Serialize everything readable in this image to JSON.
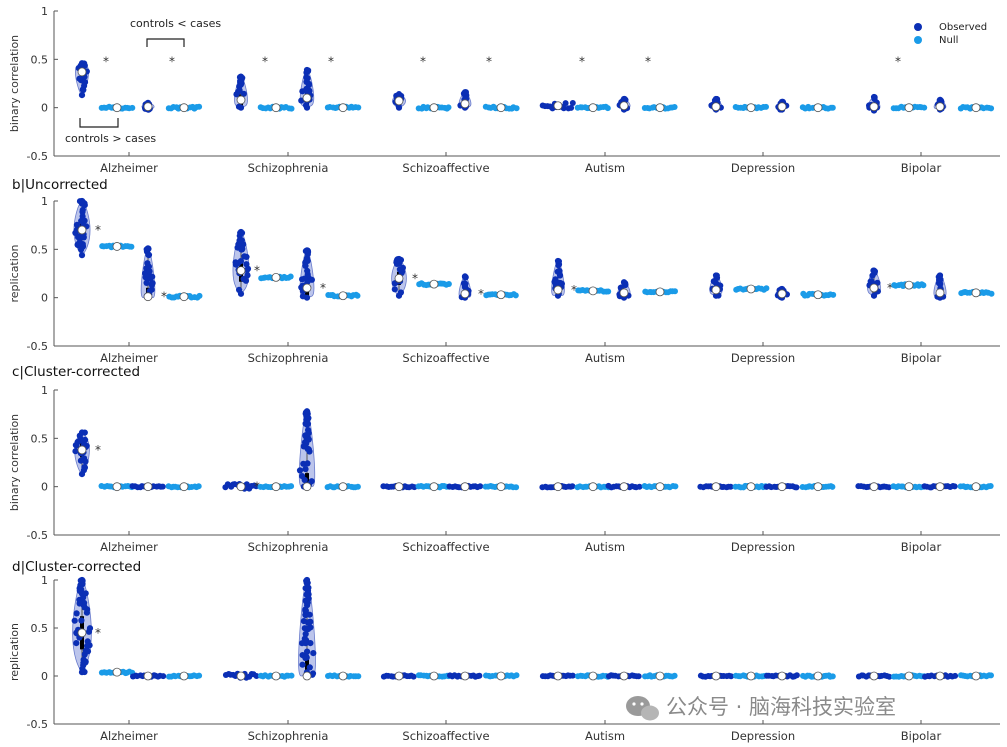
{
  "colors": {
    "observed": "#0b2fb5",
    "null": "#1a9be8",
    "violin": "#8f9fe0",
    "axis": "#555555"
  },
  "legend": {
    "observed": "Observed",
    "null": "Null",
    "placement": "top-right"
  },
  "annotations": {
    "upper": "controls < cases",
    "lower": "controls > cases"
  },
  "watermark": {
    "icon": "wechat-icon",
    "text": "公众号 · 脑海科技实验室"
  },
  "chart_data": [
    {
      "type": "violin-scatter",
      "title": "",
      "ylabel": "binary correlation",
      "ylim": [
        -0.5,
        1
      ],
      "yticks": [
        "1",
        "0.5",
        "0",
        "-0.5"
      ],
      "categories": [
        "Alzheimer",
        "Schizophrenia",
        "Schizoaffective",
        "Autism",
        "Depression",
        "Bipolar"
      ],
      "series": [
        {
          "name": "Observed",
          "group": "controls > cases",
          "median": [
            0.37,
            0.08,
            0.07,
            0.02,
            0.01,
            0.01
          ],
          "max": [
            0.46,
            0.32,
            0.14,
            0.06,
            0.09,
            0.11
          ],
          "min": [
            0.13,
            0.0,
            0.0,
            0.0,
            -0.02,
            -0.03
          ],
          "sig": [
            true,
            true,
            true,
            true,
            false,
            true
          ]
        },
        {
          "name": "Null",
          "group": "controls > cases",
          "median": [
            0,
            0,
            0,
            0,
            0,
            0
          ],
          "max": [
            0.01,
            0.01,
            0.01,
            0.01,
            0.01,
            0.01
          ],
          "min": [
            -0.01,
            -0.01,
            -0.01,
            -0.01,
            -0.01,
            -0.01
          ],
          "sig": [
            false,
            false,
            false,
            false,
            false,
            false
          ]
        },
        {
          "name": "Observed",
          "group": "controls < cases",
          "median": [
            0.01,
            0.1,
            0.04,
            0.02,
            0.01,
            0.01
          ],
          "max": [
            0.05,
            0.39,
            0.16,
            0.09,
            0.06,
            0.08
          ],
          "min": [
            -0.02,
            0.0,
            0.0,
            -0.02,
            -0.02,
            -0.02
          ],
          "sig": [
            true,
            true,
            true,
            true,
            false,
            false
          ]
        },
        {
          "name": "Null",
          "group": "controls < cases",
          "median": [
            0,
            0,
            0,
            0,
            0,
            0
          ],
          "max": [
            0.01,
            0.01,
            0.01,
            0.01,
            0.01,
            0.01
          ],
          "min": [
            -0.01,
            -0.01,
            -0.01,
            -0.01,
            -0.01,
            -0.01
          ],
          "sig": [
            false,
            false,
            false,
            false,
            false,
            false
          ]
        }
      ]
    },
    {
      "type": "violin-scatter",
      "title": "b|Uncorrected",
      "ylabel": "replication",
      "ylim": [
        -0.5,
        1
      ],
      "yticks": [
        "1",
        "0.5",
        "0",
        "-0.5"
      ],
      "categories": [
        "Alzheimer",
        "Schizophrenia",
        "Schizoaffective",
        "Autism",
        "Depression",
        "Bipolar"
      ],
      "series": [
        {
          "name": "Observed",
          "group": "controls > cases",
          "median": [
            0.7,
            0.28,
            0.2,
            0.08,
            0.08,
            0.1
          ],
          "max": [
            1.0,
            0.68,
            0.4,
            0.38,
            0.23,
            0.28
          ],
          "min": [
            0.44,
            0.04,
            0.02,
            0.02,
            0.02,
            0.02
          ],
          "sig": [
            true,
            true,
            true,
            true,
            false,
            true
          ]
        },
        {
          "name": "Null",
          "group": "controls > cases",
          "median": [
            0.53,
            0.21,
            0.14,
            0.07,
            0.09,
            0.13
          ],
          "max": [
            0.54,
            0.22,
            0.15,
            0.08,
            0.1,
            0.14
          ],
          "min": [
            0.52,
            0.2,
            0.13,
            0.06,
            0.08,
            0.12
          ],
          "sig": [
            false,
            false,
            false,
            false,
            false,
            false
          ]
        },
        {
          "name": "Observed",
          "group": "controls < cases",
          "median": [
            0.01,
            0.1,
            0.04,
            0.05,
            0.04,
            0.05
          ],
          "max": [
            0.51,
            0.49,
            0.22,
            0.16,
            0.09,
            0.23
          ],
          "min": [
            0.0,
            0.0,
            0.0,
            0.0,
            0.0,
            0.0
          ],
          "sig": [
            true,
            true,
            true,
            false,
            false,
            false
          ]
        },
        {
          "name": "Null",
          "group": "controls < cases",
          "median": [
            0.01,
            0.02,
            0.03,
            0.06,
            0.03,
            0.05
          ],
          "max": [
            0.02,
            0.03,
            0.04,
            0.07,
            0.04,
            0.06
          ],
          "min": [
            0.0,
            0.01,
            0.02,
            0.05,
            0.02,
            0.04
          ],
          "sig": [
            false,
            false,
            false,
            false,
            false,
            false
          ]
        }
      ]
    },
    {
      "type": "violin-scatter",
      "title": "c|Cluster-corrected",
      "ylabel": "binary correlation",
      "ylim": [
        -0.5,
        1
      ],
      "yticks": [
        "1",
        "0.5",
        "0",
        "-0.5"
      ],
      "categories": [
        "Alzheimer",
        "Schizophrenia",
        "Schizoaffective",
        "Autism",
        "Depression",
        "Bipolar"
      ],
      "series": [
        {
          "name": "Observed",
          "group": "controls > cases",
          "median": [
            0.38,
            0,
            0,
            0,
            0,
            0
          ],
          "max": [
            0.56,
            0.06,
            0,
            0,
            0,
            0
          ],
          "min": [
            0.13,
            0,
            0,
            0,
            0,
            0
          ],
          "sig": [
            true,
            true,
            false,
            false,
            false,
            false
          ]
        },
        {
          "name": "Null",
          "group": "controls > cases",
          "median": [
            0,
            0,
            0,
            0,
            0,
            0
          ],
          "max": [
            0,
            0,
            0,
            0,
            0,
            0
          ],
          "min": [
            0,
            0,
            0,
            0,
            0,
            0
          ],
          "sig": [
            false,
            false,
            false,
            false,
            false,
            false
          ]
        },
        {
          "name": "Observed",
          "group": "controls < cases",
          "median": [
            0,
            0.0,
            0,
            0,
            0,
            0
          ],
          "max": [
            0,
            0.78,
            0,
            0,
            0,
            0
          ],
          "min": [
            0,
            0,
            0,
            0,
            0,
            0
          ],
          "sig": [
            false,
            false,
            false,
            false,
            false,
            false
          ]
        },
        {
          "name": "Null",
          "group": "controls < cases",
          "median": [
            0,
            0,
            0,
            0,
            0,
            0
          ],
          "max": [
            0,
            0,
            0,
            0,
            0,
            0
          ],
          "min": [
            0,
            0,
            0,
            0,
            0,
            0
          ],
          "sig": [
            false,
            false,
            false,
            false,
            false,
            false
          ]
        }
      ]
    },
    {
      "type": "violin-scatter",
      "title": "d|Cluster-corrected",
      "ylabel": "replication",
      "ylim": [
        -0.5,
        1
      ],
      "yticks": [
        "1",
        "0.5",
        "0",
        "-0.5"
      ],
      "categories": [
        "Alzheimer",
        "Schizophrenia",
        "Schizoaffective",
        "Autism",
        "Depression",
        "Bipolar"
      ],
      "series": [
        {
          "name": "Observed",
          "group": "controls > cases",
          "median": [
            0.45,
            0,
            0,
            0,
            0,
            0
          ],
          "max": [
            1.0,
            0.05,
            0,
            0,
            0,
            0
          ],
          "min": [
            0.04,
            0,
            0,
            0,
            0,
            0
          ],
          "sig": [
            true,
            false,
            false,
            false,
            false,
            false
          ]
        },
        {
          "name": "Null",
          "group": "controls > cases",
          "median": [
            0.04,
            0,
            0,
            0,
            0,
            0
          ],
          "max": [
            0.05,
            0,
            0,
            0,
            0,
            0
          ],
          "min": [
            0.03,
            0,
            0,
            0,
            0,
            0
          ],
          "sig": [
            false,
            false,
            false,
            false,
            false,
            false
          ]
        },
        {
          "name": "Observed",
          "group": "controls < cases",
          "median": [
            0,
            0.0,
            0,
            0,
            0,
            0
          ],
          "max": [
            0,
            1.0,
            0,
            0,
            0,
            0
          ],
          "min": [
            0,
            0,
            0,
            0,
            0,
            0
          ],
          "sig": [
            false,
            false,
            false,
            false,
            false,
            false
          ]
        },
        {
          "name": "Null",
          "group": "controls < cases",
          "median": [
            0,
            0,
            0,
            0,
            0,
            0
          ],
          "max": [
            0,
            0,
            0,
            0,
            0,
            0
          ],
          "min": [
            0,
            0,
            0,
            0,
            0,
            0
          ],
          "sig": [
            false,
            false,
            false,
            false,
            false,
            false
          ]
        }
      ]
    }
  ]
}
